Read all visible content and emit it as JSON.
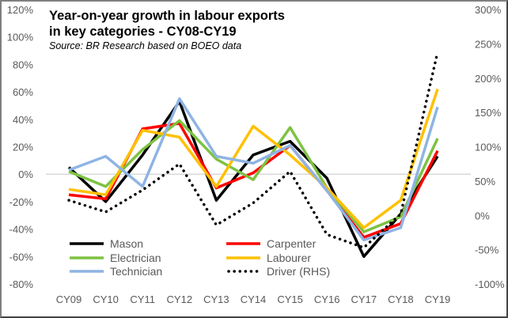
{
  "chart_data": {
    "type": "line",
    "title": "Year-on-year growth in labour exports in key categories - CY08-CY19",
    "subtitle": "Source: BR Research based on BOEO data",
    "categories": [
      "CY09",
      "CY10",
      "CY11",
      "CY12",
      "CY13",
      "CY14",
      "CY15",
      "CY16",
      "CY17",
      "CY18",
      "CY19"
    ],
    "y_left": {
      "min": -80,
      "max": 120,
      "step": 20,
      "unit": "%",
      "tick_labels": [
        "-80%",
        "-60%",
        "-40%",
        "-20%",
        "0%",
        "20%",
        "40%",
        "60%",
        "80%",
        "100%",
        "120%"
      ]
    },
    "y_right": {
      "min": -100,
      "max": 300,
      "step": 50,
      "unit": "%",
      "tick_labels": [
        "-100%",
        "-50%",
        "0%",
        "50%",
        "100%",
        "150%",
        "200%",
        "250%",
        "300%"
      ]
    },
    "grid": "zero line only",
    "legend_placement": "bottom-left",
    "series": [
      {
        "name": "Mason",
        "axis": "left",
        "color": "#000000",
        "dash": false,
        "values": [
          5,
          -20,
          14,
          53,
          -19,
          14,
          24,
          -3,
          -60,
          -29,
          13
        ]
      },
      {
        "name": "Carpenter",
        "axis": "left",
        "color": "#ff0000",
        "dash": false,
        "values": [
          -15,
          -18,
          33,
          37,
          -10,
          1,
          21,
          -12,
          -46,
          -36,
          17
        ]
      },
      {
        "name": "Electrician",
        "axis": "left",
        "color": "#7dc242",
        "dash": false,
        "values": [
          2,
          -9,
          18,
          39,
          11,
          -4,
          34,
          -10,
          -42,
          -31,
          26
        ]
      },
      {
        "name": "Labourer",
        "axis": "left",
        "color": "#ffc000",
        "dash": false,
        "values": [
          -11,
          -15,
          32,
          27,
          -9,
          35,
          14,
          -10,
          -39,
          -19,
          62
        ]
      },
      {
        "name": "Technician",
        "axis": "left",
        "color": "#8eb4e3",
        "dash": false,
        "values": [
          3,
          13,
          -9,
          55,
          13,
          8,
          21,
          -12,
          -48,
          -39,
          49
        ]
      },
      {
        "name": "Driver (RHS)",
        "axis": "right",
        "color": "#000000",
        "dash": true,
        "values": [
          22,
          5,
          37,
          75,
          -14,
          18,
          64,
          -28,
          -47,
          2,
          238
        ]
      }
    ]
  }
}
